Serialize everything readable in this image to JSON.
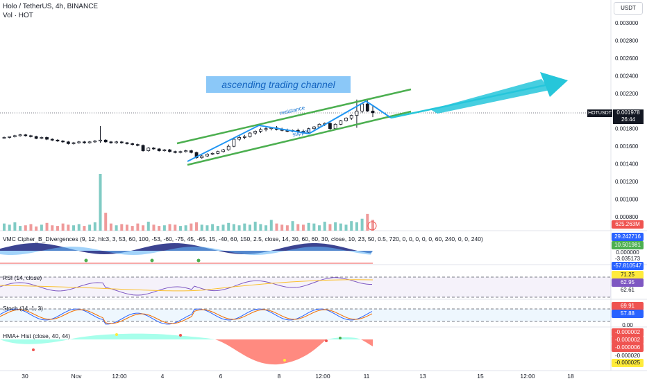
{
  "header": {
    "title": "Holo / TetherUS, 4h, BINANCE",
    "volume_label": "Vol · HOT"
  },
  "currency_button": "USDT",
  "symbol_tag": "HOTUSDT",
  "last_price": "0.001978",
  "countdown": "26:44",
  "annotations": {
    "channel_title": "ascending trading channel",
    "resistance": "resistance",
    "support": "support"
  },
  "colors": {
    "up": "#26a69a",
    "down": "#131722",
    "channel": "#4caf50",
    "arrow": "#26c6da",
    "zigzag": "#2196f3",
    "title_bg": "#2962ff"
  },
  "indicators": {
    "vmc": {
      "label": "VMC Cipher_B_Divergences (9, 12, hlc3, 3, 53, 60, 100, -53, -60, -75, 45, -65, 15, -40, 60, 150, 2.5, close, 14, 30, 60, 60, 30, close, 10, 23, 50, 0.5, 720, 0, 0, 0, 0, 0, 60, 240, 0, 0, 240)",
      "values": [
        "29.242716",
        "10.501981",
        "0.000000",
        "-3.035173",
        "-57.810547"
      ]
    },
    "rsi": {
      "label": "RSI (14, close)",
      "values": [
        "71.25",
        "62.95",
        "62.61"
      ]
    },
    "stoch": {
      "label": "Stoch (14, 1, 3)",
      "values": [
        "69.91",
        "57.88",
        "0.00"
      ]
    },
    "hma": {
      "label": "HMA+ Hist (close, 40, 44)",
      "values": [
        "-0.000002",
        "-0.000002",
        "-0.000006",
        "-0.000020",
        "-0.000025"
      ]
    },
    "volume_value": "625.263M"
  },
  "chart_data": {
    "type": "candlestick",
    "title": "Holo / TetherUS, 4h, BINANCE",
    "y_axis": {
      "range": [
        0.0007,
        0.0032
      ],
      "ticks": [
        "0.003000",
        "0.002800",
        "0.002600",
        "0.002400",
        "0.002200",
        "0.001800",
        "0.001600",
        "0.001400",
        "0.001200",
        "0.001000",
        "0.000800"
      ]
    },
    "x_axis": {
      "ticks": [
        "30",
        "Nov",
        "12:00",
        "4",
        "6",
        "8",
        "12:00",
        "11",
        "13",
        "15",
        "12:00",
        "18"
      ]
    },
    "ohlc": [
      [
        0.0017,
        0.00171,
        0.00169,
        0.0017
      ],
      [
        0.0017,
        0.00171,
        0.00169,
        0.00171
      ],
      [
        0.00171,
        0.00173,
        0.0017,
        0.00172
      ],
      [
        0.00172,
        0.00174,
        0.00171,
        0.00173
      ],
      [
        0.00173,
        0.00174,
        0.00171,
        0.00172
      ],
      [
        0.00172,
        0.00173,
        0.0017,
        0.00171
      ],
      [
        0.00171,
        0.00172,
        0.00168,
        0.00169
      ],
      [
        0.00169,
        0.00171,
        0.00168,
        0.0017
      ],
      [
        0.0017,
        0.00171,
        0.00167,
        0.00168
      ],
      [
        0.00168,
        0.00169,
        0.00166,
        0.00167
      ],
      [
        0.00167,
        0.00168,
        0.00165,
        0.00166
      ],
      [
        0.00166,
        0.00167,
        0.00164,
        0.00165
      ],
      [
        0.00165,
        0.00166,
        0.00162,
        0.00163
      ],
      [
        0.00163,
        0.00165,
        0.00162,
        0.00164
      ],
      [
        0.00164,
        0.00166,
        0.00163,
        0.00165
      ],
      [
        0.00165,
        0.00166,
        0.00163,
        0.00164
      ],
      [
        0.00164,
        0.00166,
        0.00163,
        0.00165
      ],
      [
        0.00165,
        0.00167,
        0.00164,
        0.00166
      ],
      [
        0.00166,
        0.00183,
        0.00164,
        0.00167
      ],
      [
        0.00167,
        0.00168,
        0.00164,
        0.00165
      ],
      [
        0.00165,
        0.00166,
        0.00163,
        0.00164
      ],
      [
        0.00164,
        0.00166,
        0.00163,
        0.00165
      ],
      [
        0.00165,
        0.00166,
        0.00163,
        0.00164
      ],
      [
        0.00164,
        0.00165,
        0.00162,
        0.00163
      ],
      [
        0.00163,
        0.00164,
        0.00161,
        0.00162
      ],
      [
        0.00162,
        0.00163,
        0.0016,
        0.00161
      ],
      [
        0.00161,
        0.00162,
        0.00154,
        0.00155
      ],
      [
        0.00155,
        0.00159,
        0.00154,
        0.00158
      ],
      [
        0.00158,
        0.00159,
        0.00156,
        0.00157
      ],
      [
        0.00157,
        0.00158,
        0.00154,
        0.00155
      ],
      [
        0.00155,
        0.00157,
        0.00154,
        0.00156
      ],
      [
        0.00156,
        0.00157,
        0.00153,
        0.00154
      ],
      [
        0.00154,
        0.00155,
        0.00152,
        0.00153
      ],
      [
        0.00153,
        0.00155,
        0.00152,
        0.00154
      ],
      [
        0.00154,
        0.00156,
        0.00153,
        0.00155
      ],
      [
        0.00155,
        0.00156,
        0.00152,
        0.00153
      ],
      [
        0.00153,
        0.00154,
        0.00146,
        0.00147
      ],
      [
        0.00147,
        0.0015,
        0.00146,
        0.00149
      ],
      [
        0.00149,
        0.00152,
        0.00148,
        0.00151
      ],
      [
        0.00151,
        0.00153,
        0.0015,
        0.00152
      ],
      [
        0.00152,
        0.00155,
        0.00151,
        0.00154
      ],
      [
        0.00154,
        0.00157,
        0.00153,
        0.00156
      ],
      [
        0.00156,
        0.00162,
        0.00155,
        0.0016
      ],
      [
        0.0016,
        0.0017,
        0.00159,
        0.00168
      ],
      [
        0.00168,
        0.00172,
        0.00166,
        0.0017
      ],
      [
        0.0017,
        0.00173,
        0.00168,
        0.00171
      ],
      [
        0.00171,
        0.00176,
        0.0017,
        0.00175
      ],
      [
        0.00175,
        0.00178,
        0.00173,
        0.00177
      ],
      [
        0.00177,
        0.00181,
        0.00175,
        0.00179
      ],
      [
        0.00179,
        0.00182,
        0.00177,
        0.0018
      ],
      [
        0.0018,
        0.00182,
        0.00178,
        0.00181
      ],
      [
        0.00181,
        0.00183,
        0.00178,
        0.00179
      ],
      [
        0.00179,
        0.00181,
        0.00177,
        0.00178
      ],
      [
        0.00178,
        0.0018,
        0.00176,
        0.00177
      ],
      [
        0.00177,
        0.00179,
        0.00176,
        0.00178
      ],
      [
        0.00178,
        0.0018,
        0.00176,
        0.00177
      ],
      [
        0.00177,
        0.00179,
        0.00175,
        0.00176
      ],
      [
        0.00176,
        0.00181,
        0.00175,
        0.0018
      ],
      [
        0.0018,
        0.00183,
        0.00179,
        0.00182
      ],
      [
        0.00182,
        0.00186,
        0.00181,
        0.00185
      ],
      [
        0.00185,
        0.00187,
        0.00183,
        0.00186
      ],
      [
        0.00186,
        0.00187,
        0.00178,
        0.0018
      ],
      [
        0.0018,
        0.00186,
        0.00179,
        0.00185
      ],
      [
        0.00185,
        0.0019,
        0.00184,
        0.00189
      ],
      [
        0.00189,
        0.00193,
        0.00188,
        0.00192
      ],
      [
        0.00192,
        0.00196,
        0.0019,
        0.00195
      ],
      [
        0.00195,
        0.00213,
        0.00181,
        0.002
      ],
      [
        0.002,
        0.0021,
        0.00198,
        0.00208
      ],
      [
        0.00208,
        0.00212,
        0.00199,
        0.002
      ],
      [
        0.002,
        0.00206,
        0.00193,
        0.00198
      ]
    ],
    "volume": [
      12,
      10,
      14,
      8,
      9,
      11,
      7,
      10,
      13,
      9,
      8,
      12,
      10,
      9,
      11,
      8,
      10,
      14,
      95,
      30,
      12,
      9,
      11,
      10,
      8,
      12,
      9,
      15,
      10,
      8,
      9,
      11,
      10,
      8,
      9,
      12,
      14,
      10,
      9,
      11,
      8,
      10,
      13,
      11,
      9,
      12,
      10,
      15,
      11,
      9,
      18,
      12,
      10,
      9,
      16,
      11,
      10,
      13,
      12,
      9,
      15,
      11,
      14,
      12,
      10,
      16,
      14,
      20,
      28,
      18
    ],
    "channel": {
      "upper": [
        [
          0.00161,
          0
        ],
        [
          0.00226,
          1
        ]
      ],
      "lower": [
        [
          0.00141,
          0
        ],
        [
          0.00196,
          1
        ]
      ]
    },
    "forecast_arrow": {
      "from": 0.00195,
      "to": 0.00242
    }
  }
}
